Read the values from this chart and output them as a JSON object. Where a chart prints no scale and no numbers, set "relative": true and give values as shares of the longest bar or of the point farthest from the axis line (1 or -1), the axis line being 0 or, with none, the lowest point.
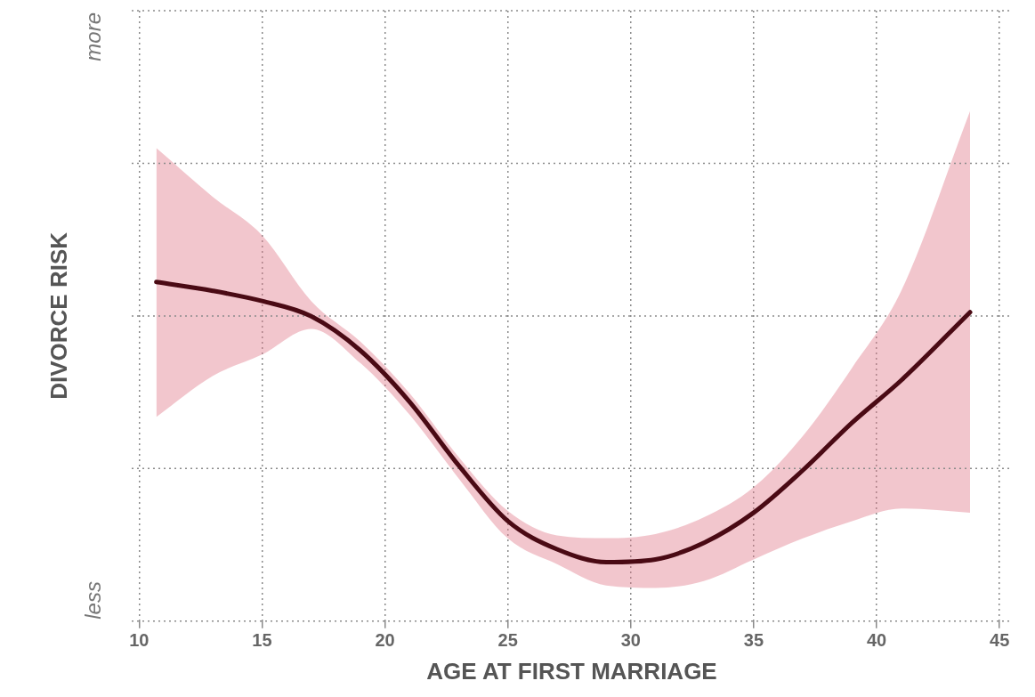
{
  "chart_data": {
    "type": "line",
    "relative": true,
    "xlabel": "AGE AT FIRST MARRIAGE",
    "ylabel": "DIVORCE RISK",
    "annotations": [
      "less",
      "more"
    ],
    "x": [
      10.7,
      13,
      15,
      17,
      19,
      21,
      23,
      25,
      27,
      29,
      31,
      33,
      35,
      37,
      39,
      41,
      43.8
    ],
    "xlim": [
      9.7,
      45.5
    ],
    "xticks": [
      10,
      15,
      20,
      25,
      30,
      35,
      40,
      45
    ],
    "grid": true,
    "legend": false,
    "series": [
      {
        "color": "#4a0a14",
        "values": [
          1,
          0.974,
          0.944,
          0.899,
          0.798,
          0.647,
          0.459,
          0.295,
          0.212,
          0.174,
          0.182,
          0.232,
          0.32,
          0.445,
          0.585,
          0.71,
          0.911
        ],
        "upper": [
          1.395,
          1.251,
          1.138,
          0.944,
          0.824,
          0.672,
          0.484,
          0.325,
          0.253,
          0.245,
          0.257,
          0.307,
          0.395,
          0.546,
          0.747,
          0.974,
          1.504
        ],
        "lower": [
          0.602,
          0.723,
          0.786,
          0.862,
          0.761,
          0.609,
          0.421,
          0.244,
          0.168,
          0.105,
          0.098,
          0.119,
          0.182,
          0.244,
          0.295,
          0.332,
          0.32
        ]
      }
    ]
  }
}
